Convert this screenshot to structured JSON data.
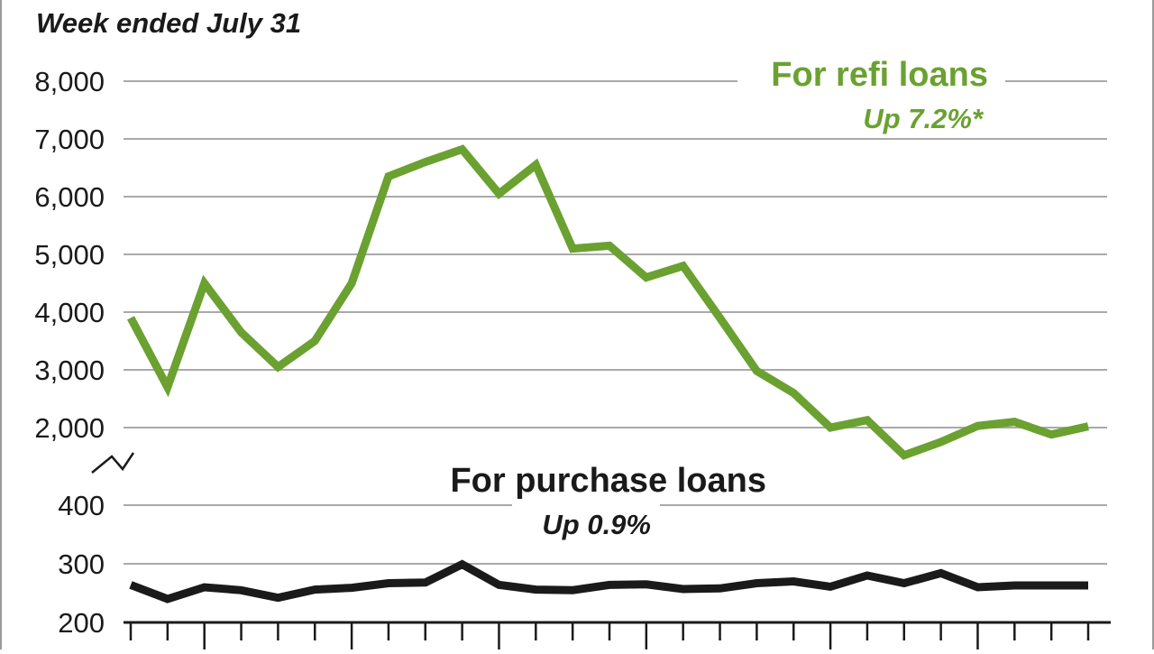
{
  "chart_data": {
    "type": "line",
    "subtitle": "Week ended July 31",
    "upper_panel": {
      "yticks": [
        "8,000",
        "7,000",
        "6,000",
        "5,000",
        "4,000",
        "3,000",
        "2,000"
      ],
      "tick_values": [
        8000,
        7000,
        6000,
        5000,
        4000,
        3000,
        2000
      ],
      "ylim": [
        2000,
        8000
      ],
      "series": [
        {
          "name": "For refi loans",
          "change_label": "Up 7.2%*",
          "color": "#6aa130",
          "values": [
            3900,
            2700,
            4500,
            3650,
            3050,
            3500,
            4500,
            6350,
            6600,
            6820,
            6050,
            6550,
            5100,
            5150,
            4600,
            4800,
            3900,
            2980,
            2600,
            2000,
            2130,
            1520,
            1750,
            2030,
            2100,
            1880,
            2020
          ]
        }
      ]
    },
    "lower_panel": {
      "yticks": [
        "400",
        "300",
        "200"
      ],
      "tick_values": [
        400,
        300,
        200
      ],
      "ylim": [
        200,
        400
      ],
      "series": [
        {
          "name": "For purchase loans",
          "change_label": "Up 0.9%",
          "color": "#1a1a1a",
          "values": [
            264,
            240,
            260,
            255,
            242,
            256,
            259,
            267,
            268,
            299,
            264,
            256,
            255,
            264,
            265,
            257,
            258,
            267,
            270,
            261,
            280,
            267,
            284,
            260,
            263,
            263,
            263
          ]
        }
      ]
    },
    "x_points": 27,
    "grid": true,
    "axis_break": true
  }
}
